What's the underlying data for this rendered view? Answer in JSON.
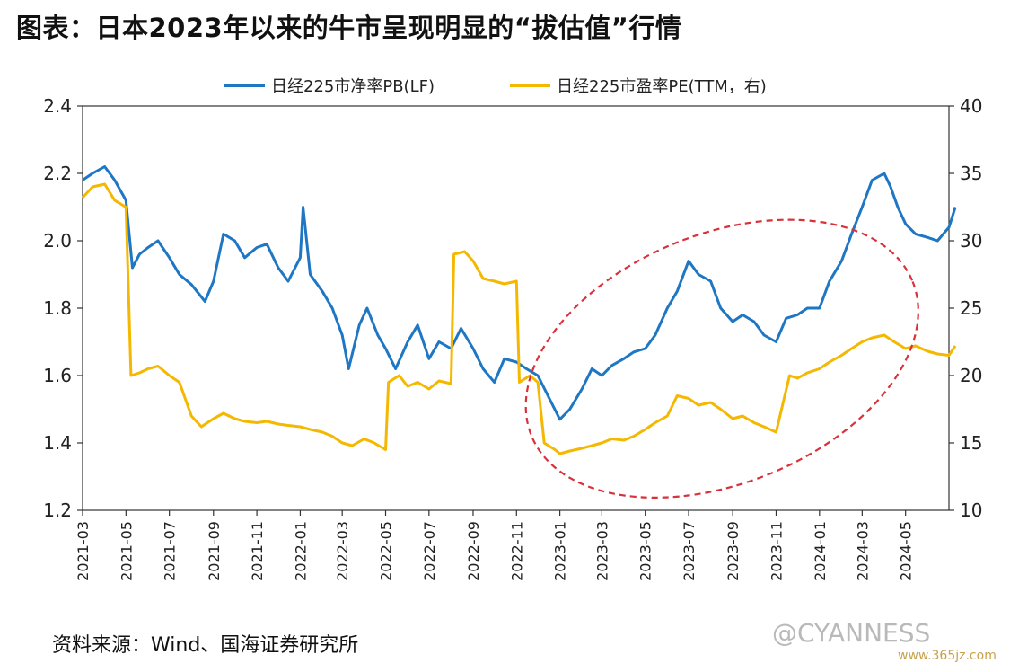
{
  "page": {
    "title": "图表：日本2023年以来的牛市呈现明显的“拔估值”行情",
    "source": "资料来源：Wind、国海证券研究所",
    "watermark": "@CYANNESS",
    "watermark_site": "www.365jz.com"
  },
  "chart_data": {
    "type": "line",
    "title": "图表：日本2023年以来的牛市呈现明显的“拔估值”行情",
    "left_axis": {
      "ylim": [
        1.2,
        2.4
      ],
      "ticks": [
        "1.2",
        "1.4",
        "1.6",
        "1.8",
        "2.0",
        "2.2",
        "2.4"
      ]
    },
    "right_axis": {
      "ylim": [
        10,
        40
      ],
      "ticks": [
        "10",
        "15",
        "20",
        "25",
        "30",
        "35",
        "40"
      ]
    },
    "x_range": [
      "2021-03",
      "2024-07"
    ],
    "x_ticks": [
      "2021-03",
      "2021-05",
      "2021-07",
      "2021-09",
      "2021-11",
      "2022-01",
      "2022-03",
      "2022-05",
      "2022-07",
      "2022-09",
      "2022-11",
      "2023-01",
      "2023-03",
      "2023-05",
      "2023-07",
      "2023-09",
      "2023-11",
      "2024-01",
      "2024-03",
      "2024-05"
    ],
    "grid": false,
    "legend_position": "top",
    "series": [
      {
        "name": "日经225市净率PB(LF)",
        "axis": "left",
        "color": "#1f77c4",
        "points": [
          [
            "2021-03-01",
            2.18
          ],
          [
            "2021-03-15",
            2.2
          ],
          [
            "2021-04-01",
            2.22
          ],
          [
            "2021-04-15",
            2.18
          ],
          [
            "2021-05-01",
            2.12
          ],
          [
            "2021-05-10",
            1.92
          ],
          [
            "2021-05-20",
            1.96
          ],
          [
            "2021-06-01",
            1.98
          ],
          [
            "2021-06-15",
            2.0
          ],
          [
            "2021-07-01",
            1.95
          ],
          [
            "2021-07-15",
            1.9
          ],
          [
            "2021-08-01",
            1.87
          ],
          [
            "2021-08-20",
            1.82
          ],
          [
            "2021-09-01",
            1.88
          ],
          [
            "2021-09-15",
            2.02
          ],
          [
            "2021-10-01",
            2.0
          ],
          [
            "2021-10-15",
            1.95
          ],
          [
            "2021-11-01",
            1.98
          ],
          [
            "2021-11-15",
            1.99
          ],
          [
            "2021-12-01",
            1.92
          ],
          [
            "2021-12-15",
            1.88
          ],
          [
            "2022-01-01",
            1.95
          ],
          [
            "2022-01-05",
            2.1
          ],
          [
            "2022-01-15",
            1.9
          ],
          [
            "2022-02-01",
            1.85
          ],
          [
            "2022-02-15",
            1.8
          ],
          [
            "2022-03-01",
            1.72
          ],
          [
            "2022-03-10",
            1.62
          ],
          [
            "2022-03-25",
            1.75
          ],
          [
            "2022-04-05",
            1.8
          ],
          [
            "2022-04-20",
            1.72
          ],
          [
            "2022-05-01",
            1.68
          ],
          [
            "2022-05-15",
            1.62
          ],
          [
            "2022-06-01",
            1.7
          ],
          [
            "2022-06-15",
            1.75
          ],
          [
            "2022-07-01",
            1.65
          ],
          [
            "2022-07-15",
            1.7
          ],
          [
            "2022-08-01",
            1.68
          ],
          [
            "2022-08-15",
            1.74
          ],
          [
            "2022-09-01",
            1.68
          ],
          [
            "2022-09-15",
            1.62
          ],
          [
            "2022-10-01",
            1.58
          ],
          [
            "2022-10-15",
            1.65
          ],
          [
            "2022-11-01",
            1.64
          ],
          [
            "2022-11-15",
            1.62
          ],
          [
            "2022-12-01",
            1.6
          ],
          [
            "2022-12-20",
            1.52
          ],
          [
            "2023-01-01",
            1.47
          ],
          [
            "2023-01-15",
            1.5
          ],
          [
            "2023-02-01",
            1.56
          ],
          [
            "2023-02-15",
            1.62
          ],
          [
            "2023-03-01",
            1.6
          ],
          [
            "2023-03-15",
            1.63
          ],
          [
            "2023-04-01",
            1.65
          ],
          [
            "2023-04-15",
            1.67
          ],
          [
            "2023-05-01",
            1.68
          ],
          [
            "2023-05-15",
            1.72
          ],
          [
            "2023-06-01",
            1.8
          ],
          [
            "2023-06-15",
            1.85
          ],
          [
            "2023-07-01",
            1.94
          ],
          [
            "2023-07-15",
            1.9
          ],
          [
            "2023-08-01",
            1.88
          ],
          [
            "2023-08-15",
            1.8
          ],
          [
            "2023-09-01",
            1.76
          ],
          [
            "2023-09-15",
            1.78
          ],
          [
            "2023-10-01",
            1.76
          ],
          [
            "2023-10-15",
            1.72
          ],
          [
            "2023-11-01",
            1.7
          ],
          [
            "2023-11-15",
            1.77
          ],
          [
            "2023-12-01",
            1.78
          ],
          [
            "2023-12-15",
            1.8
          ],
          [
            "2024-01-01",
            1.8
          ],
          [
            "2024-01-15",
            1.88
          ],
          [
            "2024-02-01",
            1.94
          ],
          [
            "2024-02-15",
            2.02
          ],
          [
            "2024-03-01",
            2.1
          ],
          [
            "2024-03-15",
            2.18
          ],
          [
            "2024-04-01",
            2.2
          ],
          [
            "2024-04-10",
            2.16
          ],
          [
            "2024-04-20",
            2.1
          ],
          [
            "2024-05-01",
            2.05
          ],
          [
            "2024-05-15",
            2.02
          ],
          [
            "2024-06-01",
            2.01
          ],
          [
            "2024-06-15",
            2.0
          ],
          [
            "2024-07-01",
            2.04
          ],
          [
            "2024-07-10",
            2.1
          ]
        ]
      },
      {
        "name": "日经225市盈率PE(TTM，右)",
        "axis": "right",
        "color": "#f5b800",
        "points": [
          [
            "2021-03-01",
            33.2
          ],
          [
            "2021-03-15",
            34.0
          ],
          [
            "2021-04-01",
            34.2
          ],
          [
            "2021-04-15",
            33.0
          ],
          [
            "2021-05-01",
            32.5
          ],
          [
            "2021-05-08",
            20.0
          ],
          [
            "2021-05-20",
            20.2
          ],
          [
            "2021-06-01",
            20.5
          ],
          [
            "2021-06-15",
            20.7
          ],
          [
            "2021-07-01",
            20.0
          ],
          [
            "2021-07-15",
            19.5
          ],
          [
            "2021-08-01",
            17.0
          ],
          [
            "2021-08-15",
            16.2
          ],
          [
            "2021-09-01",
            16.8
          ],
          [
            "2021-09-15",
            17.2
          ],
          [
            "2021-10-01",
            16.8
          ],
          [
            "2021-10-15",
            16.6
          ],
          [
            "2021-11-01",
            16.5
          ],
          [
            "2021-11-15",
            16.6
          ],
          [
            "2021-12-01",
            16.4
          ],
          [
            "2021-12-15",
            16.3
          ],
          [
            "2022-01-01",
            16.2
          ],
          [
            "2022-01-15",
            16.0
          ],
          [
            "2022-02-01",
            15.8
          ],
          [
            "2022-02-15",
            15.5
          ],
          [
            "2022-03-01",
            15.0
          ],
          [
            "2022-03-15",
            14.8
          ],
          [
            "2022-04-01",
            15.3
          ],
          [
            "2022-04-15",
            15.0
          ],
          [
            "2022-05-01",
            14.5
          ],
          [
            "2022-05-05",
            19.5
          ],
          [
            "2022-05-20",
            20.0
          ],
          [
            "2022-06-01",
            19.2
          ],
          [
            "2022-06-15",
            19.5
          ],
          [
            "2022-07-01",
            19.0
          ],
          [
            "2022-07-15",
            19.6
          ],
          [
            "2022-08-01",
            19.4
          ],
          [
            "2022-08-05",
            29.0
          ],
          [
            "2022-08-20",
            29.2
          ],
          [
            "2022-09-01",
            28.5
          ],
          [
            "2022-09-15",
            27.2
          ],
          [
            "2022-10-01",
            27.0
          ],
          [
            "2022-10-15",
            26.8
          ],
          [
            "2022-11-01",
            27.0
          ],
          [
            "2022-11-05",
            19.5
          ],
          [
            "2022-11-20",
            20.0
          ],
          [
            "2022-12-01",
            19.5
          ],
          [
            "2022-12-10",
            15.0
          ],
          [
            "2022-12-25",
            14.5
          ],
          [
            "2023-01-01",
            14.2
          ],
          [
            "2023-01-15",
            14.4
          ],
          [
            "2023-02-01",
            14.6
          ],
          [
            "2023-02-15",
            14.8
          ],
          [
            "2023-03-01",
            15.0
          ],
          [
            "2023-03-15",
            15.3
          ],
          [
            "2023-04-01",
            15.2
          ],
          [
            "2023-04-15",
            15.5
          ],
          [
            "2023-05-01",
            16.0
          ],
          [
            "2023-05-15",
            16.5
          ],
          [
            "2023-06-01",
            17.0
          ],
          [
            "2023-06-15",
            18.5
          ],
          [
            "2023-07-01",
            18.3
          ],
          [
            "2023-07-15",
            17.8
          ],
          [
            "2023-08-01",
            18.0
          ],
          [
            "2023-08-15",
            17.5
          ],
          [
            "2023-09-01",
            16.8
          ],
          [
            "2023-09-15",
            17.0
          ],
          [
            "2023-10-01",
            16.5
          ],
          [
            "2023-10-15",
            16.2
          ],
          [
            "2023-11-01",
            15.8
          ],
          [
            "2023-11-10",
            17.8
          ],
          [
            "2023-11-20",
            20.0
          ],
          [
            "2023-12-01",
            19.8
          ],
          [
            "2023-12-15",
            20.2
          ],
          [
            "2024-01-01",
            20.5
          ],
          [
            "2024-01-15",
            21.0
          ],
          [
            "2024-02-01",
            21.5
          ],
          [
            "2024-02-15",
            22.0
          ],
          [
            "2024-03-01",
            22.5
          ],
          [
            "2024-03-15",
            22.8
          ],
          [
            "2024-04-01",
            23.0
          ],
          [
            "2024-04-15",
            22.5
          ],
          [
            "2024-05-01",
            22.0
          ],
          [
            "2024-05-15",
            22.2
          ],
          [
            "2024-06-01",
            21.8
          ],
          [
            "2024-06-15",
            21.6
          ],
          [
            "2024-07-01",
            21.5
          ],
          [
            "2024-07-10",
            22.2
          ]
        ]
      }
    ],
    "annotation": {
      "type": "dashed-ellipse",
      "color": "#d9303a",
      "x_range": [
        "2022-11",
        "2024-06"
      ],
      "left_y_range": [
        1.28,
        2.02
      ]
    }
  }
}
